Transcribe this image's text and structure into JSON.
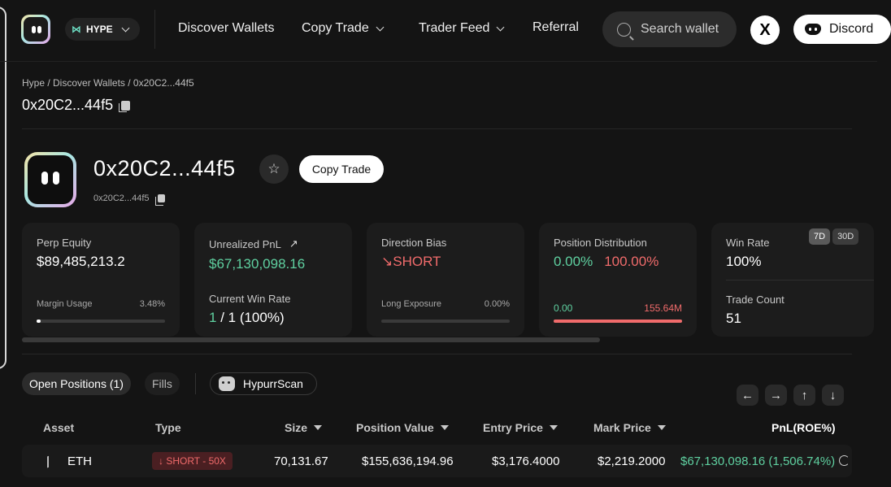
{
  "header": {
    "chain": "HYPE",
    "nav": [
      "Discover Wallets",
      "Copy Trade",
      "Trader Feed",
      "Referral"
    ],
    "search_placeholder": "Search wallet",
    "x_label": "X",
    "discord_label": "Discord"
  },
  "breadcrumb": "Hype / Discover Wallets / 0x20C2...44f5",
  "page_title": "0x20C2...44f5",
  "profile": {
    "name": "0x20C2...44f5",
    "sub": "0x20C2...44f5",
    "copy_trade_label": "Copy Trade"
  },
  "cards": {
    "perp_equity": {
      "label": "Perp Equity",
      "value": "$89,485,213.2",
      "margin_label": "Margin Usage",
      "margin_value": "3.48%",
      "margin_fraction": 0.0348
    },
    "unrealized": {
      "label": "Unrealized PnL",
      "value": "$67,130,098.16",
      "winrate_label": "Current Win Rate",
      "winrate_value_a": "1",
      "winrate_value_b": " / 1 (100%)"
    },
    "direction": {
      "label": "Direction Bias",
      "value": "↘SHORT",
      "exposure_label": "Long Exposure",
      "exposure_value": "0.00%",
      "exposure_fraction": 0.0
    },
    "distribution": {
      "label": "Position Distribution",
      "long_pct": "0.00%",
      "short_pct": "100.00%",
      "long_val": "0.00",
      "short_val": "155.64M",
      "short_fraction": 1.0
    },
    "winrate": {
      "label": "Win Rate",
      "value": "100%",
      "periods": [
        "7D",
        "30D"
      ],
      "count_label": "Trade Count",
      "count_value": "51"
    }
  },
  "tabs": {
    "open_positions": "Open Positions (1)",
    "fills": "Fills",
    "hypurrscan": "HypurrScan"
  },
  "arrows": [
    "←",
    "→",
    "↑",
    "↓"
  ],
  "table": {
    "headers": [
      "Asset",
      "Type",
      "Size",
      "Position Value",
      "Entry Price",
      "Mark Price",
      "PnL(ROE%)"
    ],
    "row": {
      "asset": "ETH",
      "type": "↓ SHORT - 50X",
      "size": "70,131.67",
      "position_value": "$155,636,194.96",
      "entry_price": "$3,176.4000",
      "mark_price": "$2,219.2000",
      "pnl": "$67,130,098.16 (1,506.74%)"
    }
  },
  "colors": {
    "green": "#5fd0a0",
    "red": "#f06b6b",
    "background": "#141414"
  }
}
